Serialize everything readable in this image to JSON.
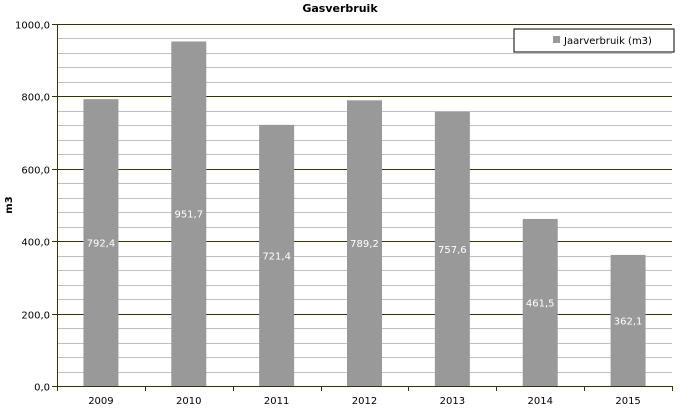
{
  "chart_data": {
    "type": "bar",
    "title": "Gasverbruik",
    "ylabel": "m3",
    "xlabel": "",
    "categories": [
      "2009",
      "2010",
      "2011",
      "2012",
      "2013",
      "2014",
      "2015"
    ],
    "series": [
      {
        "name": "Jaarverbruik (m3)",
        "values": [
          792.4,
          951.7,
          721.4,
          789.2,
          757.6,
          461.5,
          362.1
        ],
        "labels": [
          "792,4",
          "951,7",
          "721,4",
          "789,2",
          "757,6",
          "461,5",
          "362,1"
        ],
        "color": "#999999"
      }
    ],
    "ylim": [
      0,
      1000
    ],
    "yticks": [
      0,
      200,
      400,
      600,
      800,
      1000
    ],
    "ytick_labels": [
      "0,0",
      "200,0",
      "400,0",
      "600,0",
      "800,0",
      "1000,0"
    ],
    "minor_grid_step": 40,
    "grid": true,
    "legend_position": "top-right",
    "colors": {
      "bar": "#999999",
      "major_grid": "#333300",
      "minor_grid": "#c0c0c0",
      "axis": "#333300"
    }
  }
}
